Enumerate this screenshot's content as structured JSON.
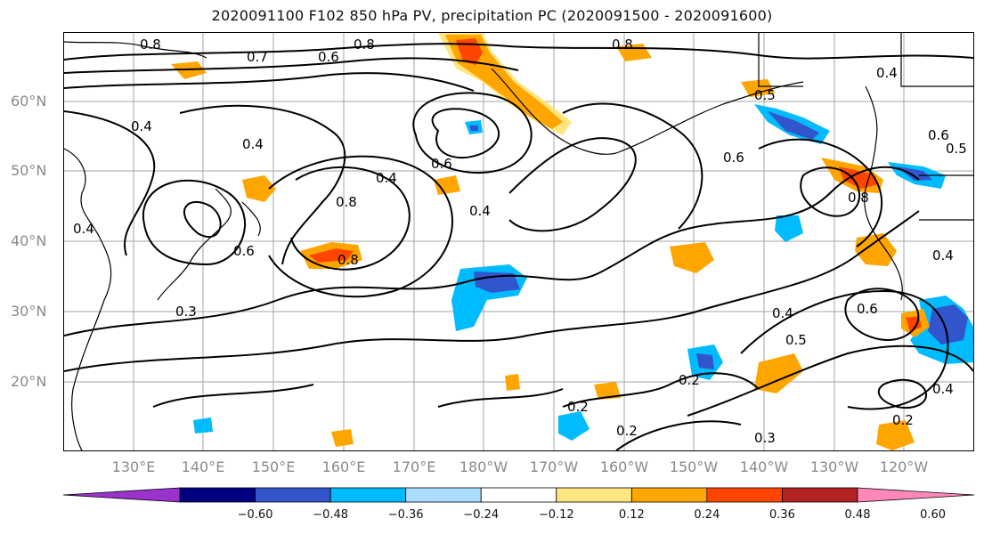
{
  "title": "2020091100 F102 850 hPa PV, precipitation PC (2020091500 - 2020091600)",
  "lat_labels": [
    "60°N",
    "50°N",
    "40°N",
    "30°N",
    "20°N"
  ],
  "lon_labels": [
    "130°E",
    "140°E",
    "150°E",
    "160°E",
    "170°E",
    "180°W",
    "170°W",
    "160°W",
    "150°W",
    "140°W",
    "130°W",
    "120°W"
  ],
  "colorbar": {
    "ticks": [
      "−0.60",
      "−0.48",
      "−0.36",
      "−0.24",
      "−0.12",
      "0.12",
      "0.24",
      "0.36",
      "0.48",
      "0.60"
    ],
    "colors": [
      "#9933cc",
      "#000080",
      "#3355cc",
      "#00bbff",
      "#aaddff",
      "#ffffff",
      "#ffe680",
      "#ffa500",
      "#ff4500",
      "#b22222",
      "#ff88bb"
    ]
  },
  "contour_labels": [
    "0.8",
    "0.7",
    "0.6",
    "0.8",
    "0.8",
    "0.6",
    "0.4",
    "0.5",
    "0.4",
    "0.4",
    "0.6",
    "0.4",
    "0.8",
    "0.4",
    "0.6",
    "0.8",
    "0.6",
    "0.8",
    "0.4",
    "0.3",
    "0.4",
    "0.4",
    "0.5",
    "0.6",
    "0.2",
    "0.2",
    "0.2",
    "0.3",
    "0.2",
    "0.4",
    "0.5"
  ],
  "colors": {
    "positive_light": "#ffe680",
    "positive": "#ffa500",
    "positive_strong": "#ff4500",
    "negative_light": "#aaddff",
    "negative": "#00bbff",
    "negative_strong": "#3355cc",
    "negative_max": "#000080"
  }
}
